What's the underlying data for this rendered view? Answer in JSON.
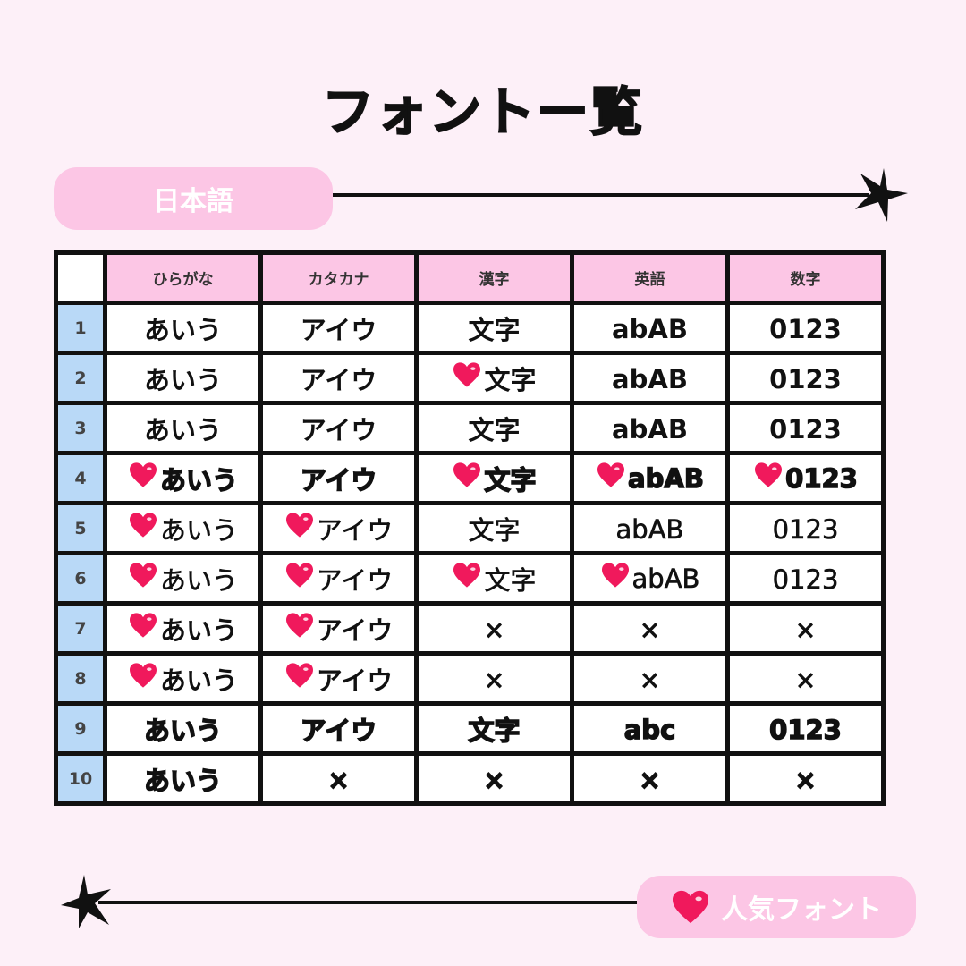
{
  "title": "フォントー覧",
  "section_label": "日本語",
  "legend": {
    "label": "人気フォント",
    "icon": "heart-icon"
  },
  "colors": {
    "background": "#fdf0f8",
    "pink": "#fcc6e5",
    "blue": "#b9d9f7",
    "heart": "#f0195c"
  },
  "table": {
    "headers": [
      "ひらがな",
      "カタカナ",
      "漢字",
      "英語",
      "数字"
    ],
    "rows": [
      {
        "num": "1",
        "cells": [
          {
            "text": "あいう",
            "heart": false
          },
          {
            "text": "アイウ",
            "heart": false
          },
          {
            "text": "文字",
            "heart": false
          },
          {
            "text": "abAB",
            "heart": false
          },
          {
            "text": "0123",
            "heart": false
          }
        ]
      },
      {
        "num": "2",
        "cells": [
          {
            "text": "あいう",
            "heart": false
          },
          {
            "text": "アイウ",
            "heart": false
          },
          {
            "text": "文字",
            "heart": true
          },
          {
            "text": "abAB",
            "heart": false
          },
          {
            "text": "0123",
            "heart": false
          }
        ]
      },
      {
        "num": "3",
        "cells": [
          {
            "text": "あいう",
            "heart": false
          },
          {
            "text": "アイウ",
            "heart": false
          },
          {
            "text": "文字",
            "heart": false
          },
          {
            "text": "abAB",
            "heart": false
          },
          {
            "text": "0123",
            "heart": false
          }
        ]
      },
      {
        "num": "4",
        "cells": [
          {
            "text": "あいう",
            "heart": true
          },
          {
            "text": "アイウ",
            "heart": false
          },
          {
            "text": "文字",
            "heart": true
          },
          {
            "text": "abAB",
            "heart": true
          },
          {
            "text": "0123",
            "heart": true
          }
        ]
      },
      {
        "num": "5",
        "cells": [
          {
            "text": "あいう",
            "heart": true
          },
          {
            "text": "アイウ",
            "heart": true
          },
          {
            "text": "文字",
            "heart": false
          },
          {
            "text": "abAB",
            "heart": false
          },
          {
            "text": "0123",
            "heart": false
          }
        ]
      },
      {
        "num": "6",
        "cells": [
          {
            "text": "あいう",
            "heart": true
          },
          {
            "text": "アイウ",
            "heart": true
          },
          {
            "text": "文字",
            "heart": true
          },
          {
            "text": "abAB",
            "heart": true
          },
          {
            "text": "0123",
            "heart": false
          }
        ]
      },
      {
        "num": "7",
        "cells": [
          {
            "text": "あいう",
            "heart": true
          },
          {
            "text": "アイウ",
            "heart": true
          },
          {
            "text": "×",
            "heart": false
          },
          {
            "text": "×",
            "heart": false
          },
          {
            "text": "×",
            "heart": false
          }
        ]
      },
      {
        "num": "8",
        "cells": [
          {
            "text": "あいう",
            "heart": true
          },
          {
            "text": "アイウ",
            "heart": true
          },
          {
            "text": "×",
            "heart": false
          },
          {
            "text": "×",
            "heart": false
          },
          {
            "text": "×",
            "heart": false
          }
        ]
      },
      {
        "num": "9",
        "cells": [
          {
            "text": "あいう",
            "heart": false
          },
          {
            "text": "アイウ",
            "heart": false
          },
          {
            "text": "文字",
            "heart": false
          },
          {
            "text": "abc",
            "heart": false
          },
          {
            "text": "0123",
            "heart": false
          }
        ]
      },
      {
        "num": "10",
        "cells": [
          {
            "text": "あいう",
            "heart": false
          },
          {
            "text": "×",
            "heart": false
          },
          {
            "text": "×",
            "heart": false
          },
          {
            "text": "×",
            "heart": false
          },
          {
            "text": "×",
            "heart": false
          }
        ]
      }
    ]
  }
}
